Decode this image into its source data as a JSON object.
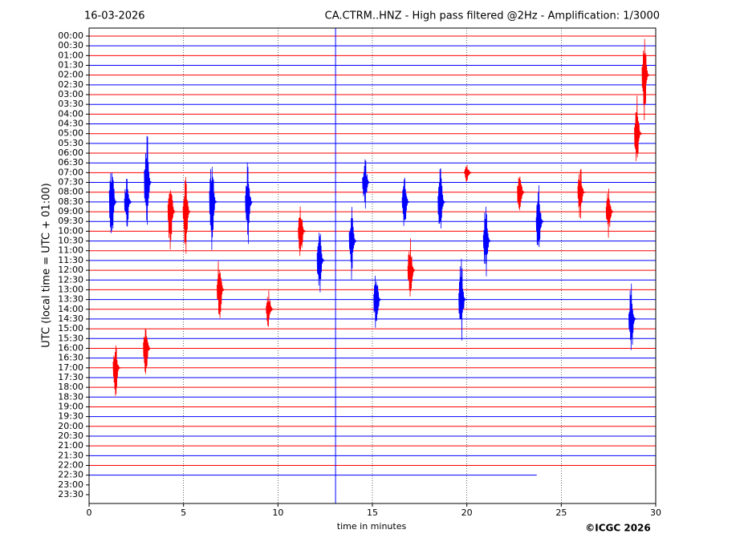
{
  "chart_data": {
    "type": "helicorder",
    "date": "16-03-2026",
    "title": "CA.CTRM..HNZ - High pass filtered @2Hz - Amplification: 1/3000",
    "ylabel": "UTC (local time = UTC + 01:00)",
    "xlabel": "time in minutes",
    "credit": "©ICGC 2026",
    "categories": [
      "00:00",
      "00:30",
      "01:00",
      "01:30",
      "02:00",
      "02:30",
      "03:00",
      "03:30",
      "04:00",
      "04:30",
      "05:00",
      "05:30",
      "06:00",
      "06:30",
      "07:00",
      "07:30",
      "08:00",
      "08:30",
      "09:00",
      "09:30",
      "10:00",
      "10:30",
      "11:00",
      "11:30",
      "12:00",
      "12:30",
      "13:00",
      "13:30",
      "14:00",
      "14:30",
      "15:00",
      "15:30",
      "16:00",
      "16:30",
      "17:00",
      "17:30",
      "18:00",
      "18:30",
      "19:00",
      "19:30",
      "20:00",
      "20:30",
      "21:00",
      "21:30",
      "22:00",
      "22:30",
      "23:00",
      "23:30"
    ],
    "trace_end": [
      30,
      30,
      30,
      30,
      30,
      30,
      30,
      30,
      30,
      30,
      30,
      30,
      30,
      30,
      30,
      30,
      30,
      30,
      30,
      30,
      30,
      30,
      30,
      30,
      30,
      30,
      30,
      30,
      30,
      30,
      30,
      30,
      30,
      30,
      30,
      30,
      30,
      30,
      30,
      30,
      30,
      30,
      30,
      30,
      30,
      23.7,
      null,
      null
    ],
    "colors": [
      "#ff0000",
      "#0000ff"
    ],
    "marker_x": 13.05,
    "marker_color": "#0000ff",
    "xlim": [
      0,
      30
    ],
    "xticks": [
      0,
      5,
      10,
      15,
      20,
      25,
      30
    ],
    "grid": true,
    "events": [
      {
        "row": 4,
        "x": 29.4,
        "amp": 5
      },
      {
        "row": 10,
        "x": 29.0,
        "amp": 4
      },
      {
        "row": 15,
        "x": 3.05,
        "amp": 6
      },
      {
        "row": 17,
        "x": 1.2,
        "amp": 5
      },
      {
        "row": 17,
        "x": 2.0,
        "amp": 3
      },
      {
        "row": 18,
        "x": 4.3,
        "amp": 5
      },
      {
        "row": 18,
        "x": 5.1,
        "amp": 5
      },
      {
        "row": 17,
        "x": 6.5,
        "amp": 5
      },
      {
        "row": 26,
        "x": 6.9,
        "amp": 4
      },
      {
        "row": 17,
        "x": 8.4,
        "amp": 5
      },
      {
        "row": 20,
        "x": 11.2,
        "amp": 3
      },
      {
        "row": 23,
        "x": 12.2,
        "amp": 4
      },
      {
        "row": 21,
        "x": 13.9,
        "amp": 4
      },
      {
        "row": 15,
        "x": 14.6,
        "amp": 3
      },
      {
        "row": 27,
        "x": 15.2,
        "amp": 4
      },
      {
        "row": 17,
        "x": 16.7,
        "amp": 3
      },
      {
        "row": 24,
        "x": 17.0,
        "amp": 4
      },
      {
        "row": 17,
        "x": 18.6,
        "amp": 4
      },
      {
        "row": 27,
        "x": 19.7,
        "amp": 5
      },
      {
        "row": 14,
        "x": 20.0,
        "amp": 1
      },
      {
        "row": 21,
        "x": 21.0,
        "amp": 4
      },
      {
        "row": 16,
        "x": 22.8,
        "amp": 3
      },
      {
        "row": 19,
        "x": 23.8,
        "amp": 4
      },
      {
        "row": 16,
        "x": 26.0,
        "amp": 3
      },
      {
        "row": 18,
        "x": 27.5,
        "amp": 3
      },
      {
        "row": 29,
        "x": 28.7,
        "amp": 4
      },
      {
        "row": 34,
        "x": 1.4,
        "amp": 3
      },
      {
        "row": 32,
        "x": 3.0,
        "amp": 3
      },
      {
        "row": 28,
        "x": 9.5,
        "amp": 2
      }
    ]
  }
}
